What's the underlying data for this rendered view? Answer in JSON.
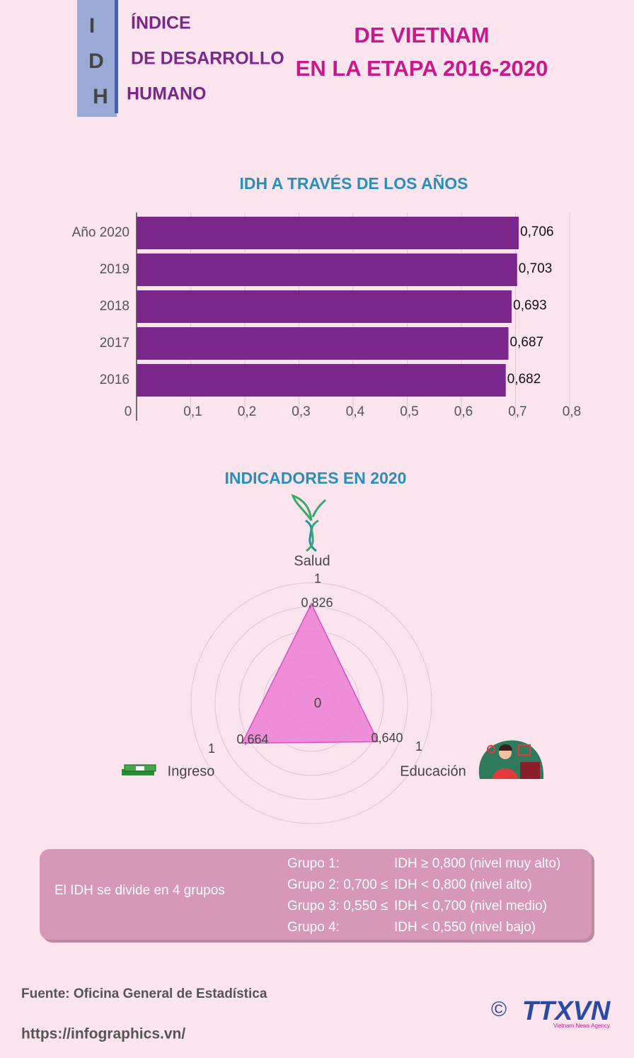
{
  "header": {
    "letters": [
      "I",
      "D",
      "H"
    ],
    "lines": [
      "ÍNDICE",
      "DE DESARROLLO",
      "HUMANO"
    ],
    "title_lines": [
      "DE VIETNAM",
      "EN LA ETAPA 2016-2020"
    ]
  },
  "chart_data": [
    {
      "type": "bar",
      "orientation": "horizontal",
      "title": "IDH A TRAVÉS DE LOS AÑOS",
      "categories": [
        "Año 2020",
        "2019",
        "2018",
        "2017",
        "2016"
      ],
      "values": [
        0.706,
        0.703,
        0.693,
        0.687,
        0.682
      ],
      "value_labels": [
        "0,706",
        "0,703",
        "0,693",
        "0,687",
        "0,682"
      ],
      "color": "#7a268a",
      "xlim": [
        0,
        0.8
      ],
      "xticks": [
        0,
        {
          "value": 0.1,
          "label": "0,1"
        },
        {
          "value": 0.2,
          "label": "0,2"
        },
        {
          "value": 0.3,
          "label": "0,3"
        },
        {
          "value": 0.4,
          "label": "0,4"
        },
        {
          "value": 0.5,
          "label": "0,5"
        },
        {
          "value": 0.6,
          "label": "0,6"
        },
        {
          "value": 0.7,
          "label": "0,7"
        },
        {
          "value": 0.8,
          "label": "0,8"
        }
      ],
      "grid": true
    },
    {
      "type": "radar",
      "title": "INDICADORES EN 2020",
      "categories": [
        "Salud",
        "Educación",
        "Ingreso"
      ],
      "values": [
        0.826,
        0.64,
        0.664
      ],
      "value_labels": [
        "0,826",
        "0,640",
        "0,664"
      ],
      "color": "#ec7fd4",
      "rlim": [
        0,
        1
      ],
      "rticks": [
        0,
        1
      ]
    }
  ],
  "groups": {
    "label": "El IDH se divide en 4 grupos",
    "rows": [
      [
        "Grupo 1:",
        "IDH ≥ 0,800 (nivel muy alto)"
      ],
      [
        "Grupo 2: 0,700 ≤",
        "IDH < 0,800 (nivel alto)"
      ],
      [
        "Grupo 3: 0,550 ≤",
        "IDH < 0,700 (nivel medio)"
      ],
      [
        "Grupo 4:",
        "IDH < 0,550 (nivel bajo)"
      ]
    ]
  },
  "footer": {
    "source": "Fuente: Oficina General de Estadística",
    "url": "https://infographics.vn/",
    "copyright": "©",
    "logo": "TTXVN",
    "logo_sub": "Vietnam News Agency"
  }
}
